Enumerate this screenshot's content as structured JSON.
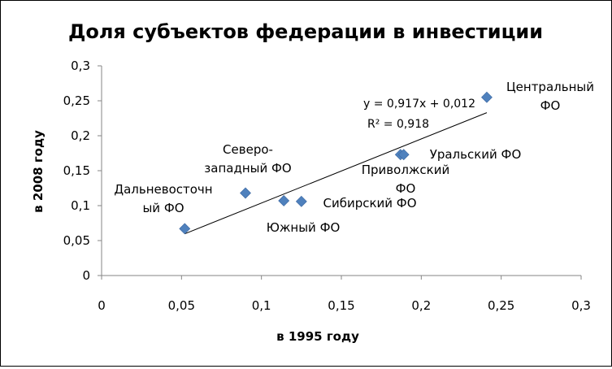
{
  "chart_data": {
    "type": "scatter",
    "title": "Доля субъектов федерации в инвестиции",
    "xlabel": "в 1995 году",
    "ylabel": "в 2008 году",
    "xlim": [
      0,
      0.3
    ],
    "ylim": [
      0,
      0.3
    ],
    "x_ticks": [
      "0",
      "0,05",
      "0,1",
      "0,15",
      "0,2",
      "0,25",
      "0,3"
    ],
    "y_ticks": [
      "0",
      "0,05",
      "0,1",
      "0,15",
      "0,2",
      "0,25",
      "0,3"
    ],
    "grid": false,
    "legend": "none",
    "marker": "diamond",
    "marker_color": "#4F81BD",
    "points": [
      {
        "label": [
          "Дальневосточн",
          "ый ФО"
        ],
        "x": 0.052,
        "y": 0.067
      },
      {
        "label": [
          "Северо-",
          "западный ФО"
        ],
        "x": 0.09,
        "y": 0.118
      },
      {
        "label": [
          "Южный ФО"
        ],
        "x": 0.114,
        "y": 0.107
      },
      {
        "label": [
          "Сибирский ФО"
        ],
        "x": 0.125,
        "y": 0.106
      },
      {
        "label": [
          "Приволжский",
          "ФО"
        ],
        "x": 0.187,
        "y": 0.173
      },
      {
        "label": [
          "Уральский ФО"
        ],
        "x": 0.189,
        "y": 0.173
      },
      {
        "label": [
          "Центральный",
          "ФО"
        ],
        "x": 0.241,
        "y": 0.255
      }
    ],
    "trendline": {
      "slope": 0.917,
      "intercept": 0.012,
      "x_range": [
        0.052,
        0.241
      ],
      "equation": "y = 0,917x + 0,012",
      "r_squared": "R² = 0,918"
    }
  }
}
